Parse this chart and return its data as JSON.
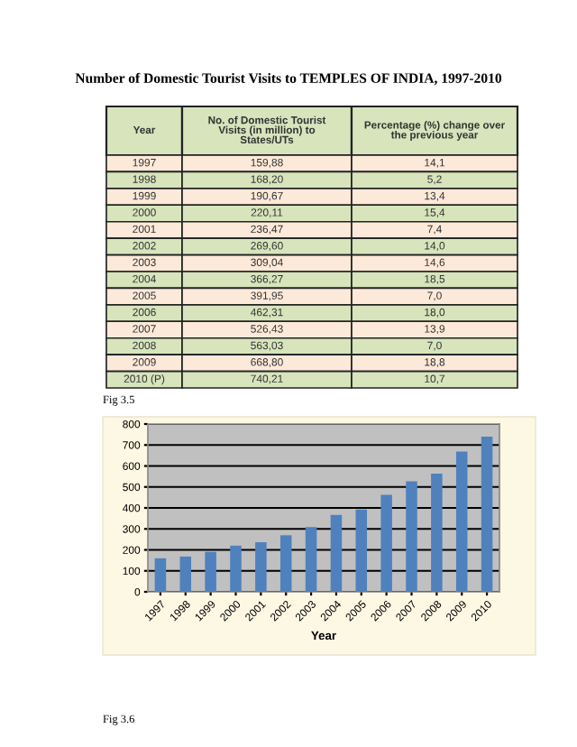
{
  "chart_data": {
    "type": "bar",
    "title": "Number of Domestic Tourist Visits to TEMPLES OF INDIA, 1997-2010",
    "xlabel": "Year",
    "categories": [
      "1997",
      "1998",
      "1999",
      "2000",
      "2001",
      "2002",
      "2003",
      "2004",
      "2005",
      "2006",
      "2007",
      "2008",
      "2009",
      "2010"
    ],
    "values": [
      159.88,
      168.2,
      190.67,
      220.11,
      236.47,
      269.6,
      309.04,
      366.27,
      391.95,
      462.31,
      526.43,
      563.03,
      668.8,
      740.21
    ],
    "color": "#4f81bd",
    "ylim": [
      0,
      800
    ],
    "yticks": [
      0,
      100,
      200,
      300,
      400,
      500,
      600,
      700,
      800
    ],
    "grid": "y",
    "annotations": [
      "Year",
      "No. of Domestic Tourist\nVisits (in million) to\nStates/UTs",
      "Percentage (%) change over\nthe previous year",
      "1997",
      "1998",
      "1999",
      "2000",
      "2001",
      "2002",
      "2003",
      "2004",
      "2005",
      "2006",
      "2007",
      "2008",
      "2009",
      "2010 (P)",
      "159,88",
      "168,20",
      "190,67",
      "220,11",
      "236,47",
      "269,60",
      "309,04",
      "366,27",
      "391,95",
      "462,31",
      "526,43",
      "563,03",
      "668,80",
      "740,21",
      "14,1",
      "5,2",
      "13,4",
      "15,4",
      "7,4",
      "14,0",
      "14,6",
      "18,5",
      "7,0",
      "18,0",
      "13,9",
      "7,0",
      "18,8",
      "10,7",
      "Fig 3.5",
      "Fig 3.6"
    ]
  }
}
